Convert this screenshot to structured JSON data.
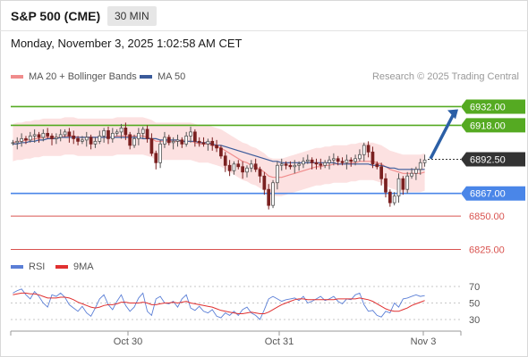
{
  "header": {
    "title": "S&P 500 (CME)",
    "interval": "30 MIN",
    "datetime": "Monday, November 3, 2025 1:02:58 AM CET"
  },
  "legend": {
    "ma20_label": "MA 20 + Bollinger Bands",
    "ma50_label": "MA 50",
    "rsi_label": "RSI",
    "ma9_label": "9MA",
    "credit": "Research © 2025 Trading Central"
  },
  "colors": {
    "ma20": "#f08c8c",
    "ma50": "#3a5a9a",
    "bollinger_fill": "#fcdcdc",
    "support_level": "#d9534f",
    "pivot_level": "#4a86e8",
    "resistance_level": "#55aa22",
    "current_price": "#333333",
    "forecast_arrow": "#2b5fa6",
    "rsi": "#5b7fd6",
    "rsi_ma": "#e03030",
    "candle_up": "#555555",
    "candle_down": "#7a2020"
  },
  "chart_data": {
    "type": "candlestick",
    "title": "S&P 500 (CME)",
    "interval": "30 MIN",
    "x_tick_labels": [
      "Oct 30",
      "Oct 31",
      "Nov 3"
    ],
    "price_axis": {
      "min": 6818,
      "max": 6945
    },
    "levels": [
      {
        "value": 6932.0,
        "label": "6932.00",
        "kind": "resistance"
      },
      {
        "value": 6918.0,
        "label": "6918.00",
        "kind": "resistance"
      },
      {
        "value": 6892.5,
        "label": "6892.50",
        "kind": "current"
      },
      {
        "value": 6867.0,
        "label": "6867.00",
        "kind": "pivot"
      },
      {
        "value": 6850.0,
        "label": "6850.00",
        "kind": "support"
      },
      {
        "value": 6825.0,
        "label": "6825.00",
        "kind": "support"
      }
    ],
    "forecast_arrow": {
      "from": 6893,
      "to": 6930
    },
    "close_series": [
      6905,
      6906,
      6908,
      6907,
      6910,
      6911,
      6909,
      6912,
      6910,
      6908,
      6909,
      6911,
      6913,
      6910,
      6908,
      6906,
      6907,
      6909,
      6904,
      6906,
      6910,
      6914,
      6908,
      6912,
      6913,
      6916,
      6911,
      6903,
      6908,
      6912,
      6915,
      6908,
      6897,
      6890,
      6904,
      6909,
      6905,
      6906,
      6907,
      6904,
      6910,
      6913,
      6906,
      6905,
      6904,
      6906,
      6903,
      6901,
      6895,
      6888,
      6884,
      6889,
      6887,
      6883,
      6886,
      6889,
      6885,
      6880,
      6870,
      6858,
      6875,
      6888,
      6889,
      6888,
      6887,
      6888,
      6889,
      6891,
      6892,
      6890,
      6889,
      6888,
      6890,
      6892,
      6893,
      6891,
      6890,
      6892,
      6891,
      6893,
      6896,
      6903,
      6898,
      6889,
      6887,
      6878,
      6868,
      6860,
      6865,
      6878,
      6870,
      6880,
      6882,
      6885,
      6890,
      6892
    ],
    "ma20_series": [
      6905,
      6906,
      6906,
      6907,
      6907,
      6908,
      6908,
      6909,
      6909,
      6909,
      6909,
      6909,
      6910,
      6910,
      6910,
      6909,
      6909,
      6909,
      6909,
      6909,
      6909,
      6909,
      6909,
      6909,
      6910,
      6910,
      6910,
      6910,
      6910,
      6910,
      6910,
      6909,
      6908,
      6906,
      6906,
      6906,
      6906,
      6906,
      6906,
      6906,
      6906,
      6906,
      6905,
      6904,
      6904,
      6904,
      6903,
      6902,
      6901,
      6899,
      6897,
      6895,
      6893,
      6891,
      6890,
      6888,
      6887,
      6885,
      6883,
      6880,
      6879,
      6879,
      6879,
      6880,
      6881,
      6882,
      6883,
      6884,
      6885,
      6886,
      6887,
      6887,
      6888,
      6888,
      6889,
      6889,
      6889,
      6889,
      6890,
      6890,
      6891,
      6891,
      6891,
      6891,
      6890,
      6889,
      6887,
      6885,
      6884,
      6883,
      6882,
      6882,
      6882,
      6882,
      6882,
      6883
    ],
    "ma50_series": [
      6904,
      6904,
      6905,
      6905,
      6906,
      6906,
      6907,
      6907,
      6908,
      6908,
      6908,
      6909,
      6909,
      6909,
      6909,
      6909,
      6909,
      6909,
      6909,
      6909,
      6909,
      6909,
      6909,
      6909,
      6909,
      6909,
      6909,
      6909,
      6909,
      6909,
      6908,
      6908,
      6908,
      6908,
      6907,
      6907,
      6907,
      6907,
      6907,
      6906,
      6906,
      6906,
      6906,
      6905,
      6905,
      6905,
      6904,
      6903,
      6903,
      6902,
      6901,
      6900,
      6899,
      6898,
      6897,
      6896,
      6895,
      6894,
      6893,
      6892,
      6891,
      6891,
      6890,
      6890,
      6890,
      6890,
      6890,
      6890,
      6890,
      6890,
      6890,
      6890,
      6890,
      6890,
      6890,
      6889,
      6889,
      6889,
      6889,
      6889,
      6889,
      6889,
      6889,
      6888,
      6888,
      6888,
      6887,
      6886,
      6886,
      6885,
      6885,
      6885,
      6885,
      6885,
      6885,
      6885
    ],
    "bollinger_width": 14,
    "rsi": {
      "axis": {
        "min": 20,
        "max": 80
      },
      "levels": [
        70,
        50,
        30
      ],
      "level_labels": [
        "70",
        "50",
        "30"
      ],
      "values": [
        62,
        65,
        67,
        60,
        55,
        64,
        58,
        50,
        45,
        60,
        58,
        62,
        57,
        48,
        44,
        40,
        46,
        38,
        34,
        44,
        55,
        60,
        48,
        42,
        52,
        60,
        47,
        40,
        45,
        56,
        62,
        40,
        35,
        55,
        58,
        50,
        49,
        52,
        45,
        55,
        60,
        44,
        41,
        46,
        40,
        38,
        42,
        34,
        32,
        38,
        35,
        40,
        35,
        42,
        45,
        38,
        35,
        30,
        42,
        55,
        58,
        55,
        52,
        54,
        55,
        56,
        53,
        58,
        50,
        52,
        55,
        58,
        53,
        55,
        58,
        52,
        49,
        55,
        54,
        60,
        62,
        48,
        40,
        41,
        35,
        33,
        40,
        38,
        50,
        45,
        55,
        56,
        58,
        60,
        58,
        59
      ],
      "ma_values": [
        60,
        61,
        62,
        62,
        61,
        61,
        60,
        58,
        56,
        56,
        56,
        57,
        57,
        56,
        54,
        51,
        49,
        47,
        45,
        44,
        45,
        47,
        48,
        48,
        49,
        51,
        51,
        50,
        50,
        50,
        51,
        50,
        48,
        48,
        49,
        50,
        50,
        51,
        50,
        51,
        52,
        50,
        49,
        48,
        47,
        46,
        45,
        43,
        41,
        40,
        39,
        38,
        37,
        37,
        38,
        39,
        38,
        37,
        37,
        39,
        42,
        45,
        48,
        50,
        52,
        54,
        55,
        55,
        54,
        54,
        54,
        54,
        54,
        54,
        54,
        55,
        55,
        55,
        55,
        55,
        56,
        55,
        54,
        52,
        49,
        46,
        43,
        41,
        40,
        40,
        42,
        44,
        47,
        49,
        51,
        53
      ]
    }
  }
}
